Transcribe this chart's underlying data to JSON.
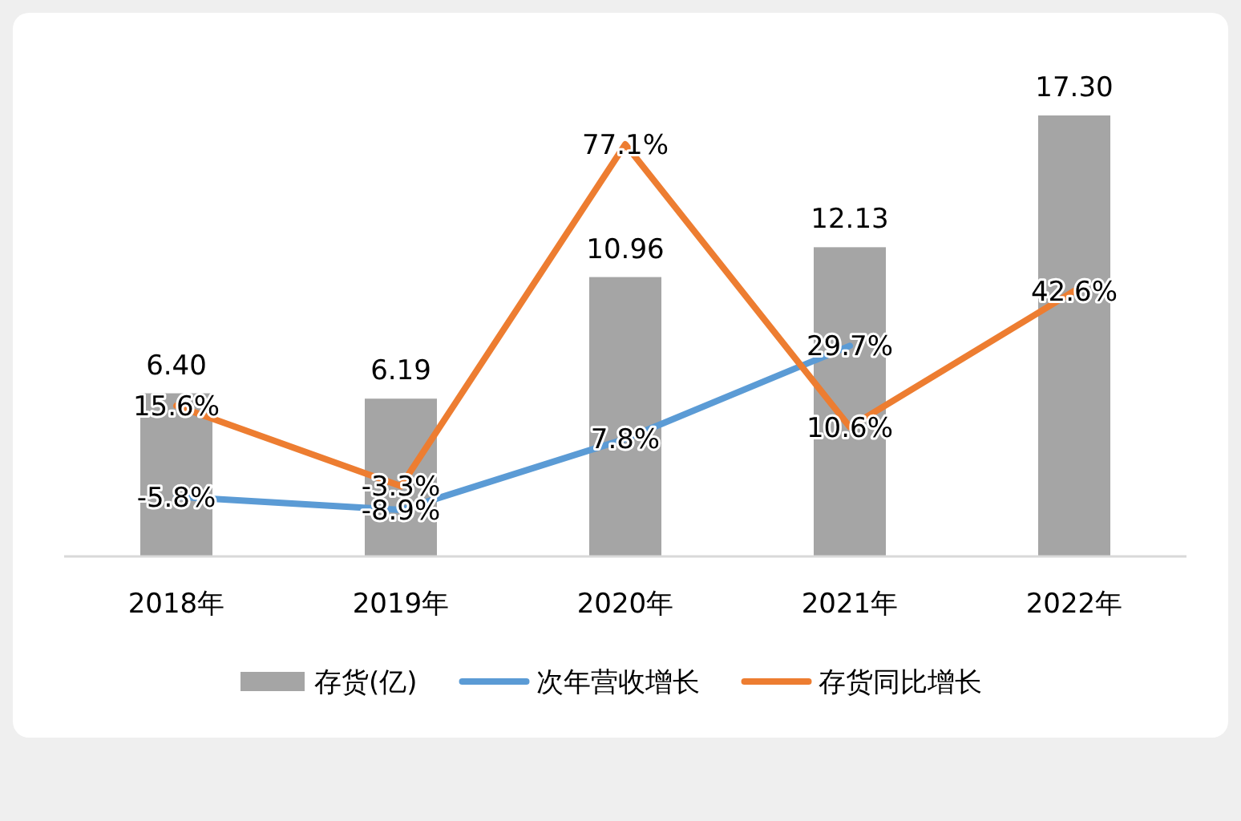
{
  "chart_data": {
    "type": "bar",
    "categories": [
      "2018年",
      "2019年",
      "2020年",
      "2021年",
      "2022年"
    ],
    "series": [
      {
        "name": "存货(亿)",
        "type": "bar",
        "color": "#a5a5a5",
        "values": [
          6.4,
          6.19,
          10.96,
          12.13,
          17.3
        ],
        "value_labels": [
          "6.40",
          "6.19",
          "10.96",
          "12.13",
          "17.30"
        ]
      },
      {
        "name": "次年营收增长",
        "type": "line",
        "axis": "y2",
        "color": "#5b9bd5",
        "values": [
          -5.8,
          -8.9,
          7.8,
          29.7,
          null
        ],
        "value_labels": [
          "-5.8%",
          "-8.9%",
          "7.8%",
          "29.7%",
          null
        ]
      },
      {
        "name": "存货同比增长",
        "type": "line",
        "axis": "y2",
        "color": "#ed7d31",
        "values": [
          15.6,
          -3.3,
          77.1,
          10.6,
          42.6
        ],
        "value_labels": [
          "15.6%",
          "-3.3%",
          "77.1%",
          "10.6%",
          "42.6%"
        ]
      }
    ],
    "legend": "bottom"
  }
}
